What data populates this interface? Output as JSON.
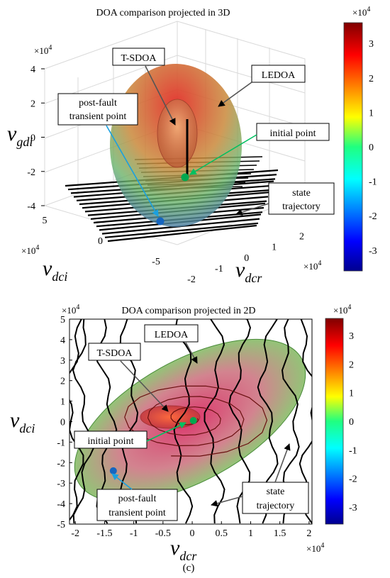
{
  "chart_data": [
    {
      "type": "3d-surface",
      "title": "DOA comparison projected in 3D",
      "x_axis": {
        "label": "v",
        "label_sub": "dcr",
        "ticks": [
          -2,
          -1,
          0,
          1,
          2
        ],
        "exponent_label": "×10",
        "exponent": "4",
        "range": [
          -2,
          2.5
        ]
      },
      "y_axis": {
        "label": "v",
        "label_sub": "dci",
        "ticks": [
          5,
          0,
          -5
        ],
        "exponent_label": "×10",
        "exponent": "4",
        "range": [
          -5,
          5
        ]
      },
      "z_axis": {
        "label": "v",
        "label_sub": "gdi",
        "ticks": [
          4,
          2,
          0,
          -2,
          -4
        ],
        "exponent_label": "×10",
        "exponent": "4",
        "range": [
          -4,
          4
        ]
      },
      "colorbar": {
        "ticks": [
          3,
          2,
          1,
          0,
          -1,
          -2,
          -3
        ],
        "range": [
          -3.6,
          3.6
        ],
        "exponent_label": "×10",
        "exponent": "4"
      },
      "annotations": [
        "T-SDOA",
        "LEDOA",
        "post-fault transient point",
        "initial point",
        "state trajectory"
      ],
      "annotation_lines": {
        "postfault": [
          "post-fault",
          "transient point"
        ],
        "trajectory": [
          "state",
          "trajectory"
        ]
      }
    },
    {
      "type": "2d-region",
      "title": "DOA comparison projected in 2D",
      "x_axis": {
        "label": "v",
        "label_sub": "dcr",
        "ticks": [
          "-2",
          "-1.5",
          "-1",
          "-0.5",
          "0",
          "0.5",
          "1",
          "1.5",
          "2"
        ],
        "exponent_label": "×10",
        "exponent": "4",
        "range": [
          -2.1,
          2.05
        ]
      },
      "y_axis": {
        "label": "v",
        "label_sub": "dci",
        "ticks": [
          5,
          4,
          3,
          2,
          1,
          0,
          -1,
          -2,
          -3,
          -4,
          -5
        ],
        "exponent_label": "×10",
        "exponent": "4",
        "range": [
          -5,
          5
        ]
      },
      "colorbar": {
        "ticks": [
          3,
          2,
          1,
          0,
          -1,
          -2,
          -3
        ],
        "range": [
          -3.6,
          3.6
        ],
        "exponent_label": "×10",
        "exponent": "4"
      },
      "points": {
        "initial_point": {
          "x": 0.02,
          "y": 0.05
        },
        "post_fault_transient_point": {
          "x": -1.35,
          "y": -2.4
        }
      },
      "annotations": [
        "LEDOA",
        "T-SDOA",
        "initial point",
        "post-fault transient point",
        "state trajectory"
      ],
      "annotation_lines": {
        "postfault": [
          "post-fault",
          "transient point"
        ],
        "trajectory": [
          "state",
          "trajectory"
        ]
      }
    }
  ],
  "caption": "(c)"
}
